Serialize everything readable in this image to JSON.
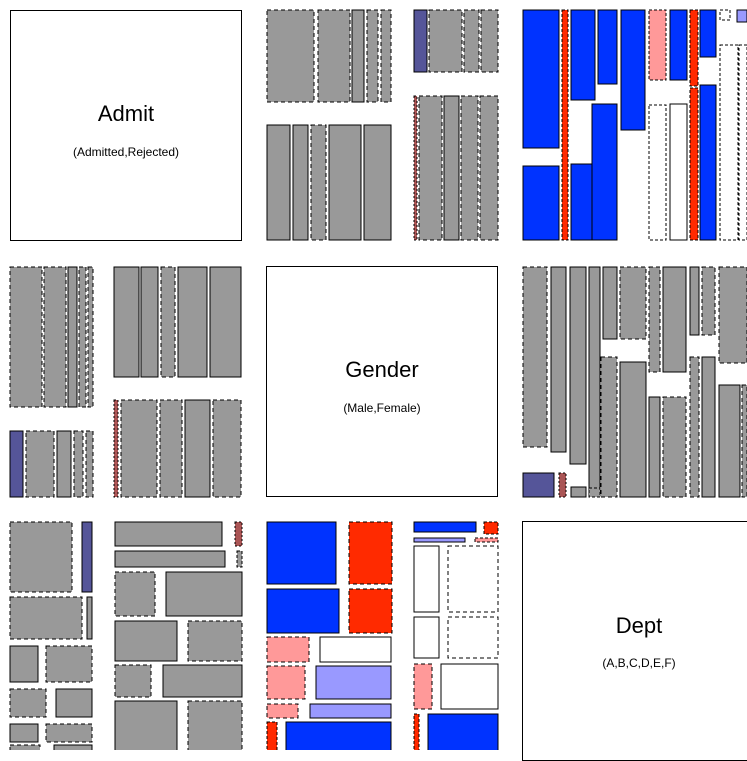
{
  "variables": [
    {
      "name": "Admit",
      "levels_text": "(Admitted,Rejected)"
    },
    {
      "name": "Gender",
      "levels_text": "(Male,Female)"
    },
    {
      "name": "Dept",
      "levels_text": "(A,B,C,D,E,F)"
    }
  ],
  "colors": {
    "strong_positive": "#0033ff",
    "weak_positive": "#9999ff",
    "strong_negative": "#ff2a00",
    "weak_negative": "#ff9999",
    "neutral": "#999999",
    "muted_blue": "#555599",
    "muted_red": "#aa5555",
    "empty": "#ffffff"
  }
}
